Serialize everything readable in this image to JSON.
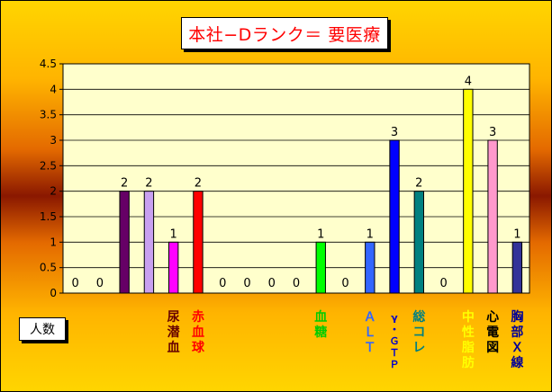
{
  "chart_data": {
    "type": "bar",
    "title": "本社−Dランク＝ 要医療",
    "ylabel": "人数",
    "xlabel": "",
    "ylim": [
      0,
      4.5
    ],
    "yticks": [
      "0",
      "0.5",
      "1",
      "1.5",
      "2",
      "2.5",
      "3",
      "3.5",
      "4",
      "4.5"
    ],
    "grid": true,
    "categories": [
      "",
      "",
      "",
      "",
      "尿潜血",
      "赤血球",
      "",
      "",
      "",
      "",
      "血糖",
      "",
      "ALT",
      "γ-GTP",
      "総コレ",
      "",
      "中性脂肪",
      "心電図",
      "胸部X線"
    ],
    "values": [
      0,
      0,
      2,
      2,
      1,
      2,
      0,
      0,
      0,
      0,
      1,
      0,
      1,
      3,
      2,
      0,
      4,
      3,
      1
    ],
    "value_labels": [
      "0",
      "0",
      "2",
      "2",
      "1",
      "2",
      "0",
      "0",
      "0",
      "0",
      "1",
      "0",
      "1",
      "3",
      "2",
      "0",
      "4",
      "3",
      "1"
    ],
    "colors": [
      "#800080",
      "#800080",
      "#660066",
      "#c8a0f0",
      "#ff00ff",
      "#ff0000",
      "#800080",
      "#800080",
      "#800080",
      "#800080",
      "#00ff00",
      "#800080",
      "#3366ff",
      "#0000ff",
      "#008080",
      "#800080",
      "#ffff00",
      "#ff99cc",
      "#333399"
    ],
    "label_colors": [
      "#000000",
      "#000000",
      "#000000",
      "#000000",
      "#660000",
      "#ff0000",
      "#000000",
      "#000000",
      "#000000",
      "#000000",
      "#00cc00",
      "#000000",
      "#3366ff",
      "#0000cc",
      "#008080",
      "#000000",
      "#ffff00",
      "#000000",
      "#000099"
    ],
    "highlight_value_color": "#ff0000",
    "plot_background": "#ffffcc",
    "category_lines": [
      [],
      [],
      [],
      [],
      [
        "尿",
        "潜",
        "血"
      ],
      [
        "赤",
        "血",
        "球"
      ],
      [],
      [],
      [],
      [],
      [
        "血",
        "糖"
      ],
      [],
      [
        "Ａ",
        "Ｌ",
        "Ｔ"
      ],
      [
        "γ",
        "・",
        "Ｇ",
        "Ｔ",
        "Ｐ"
      ],
      [
        "総",
        "コ",
        "レ"
      ],
      [],
      [
        "中",
        "性",
        "脂",
        "肪"
      ],
      [
        "心",
        "電",
        "図"
      ],
      [
        "胸",
        "部",
        "Ｘ",
        "線"
      ]
    ]
  }
}
